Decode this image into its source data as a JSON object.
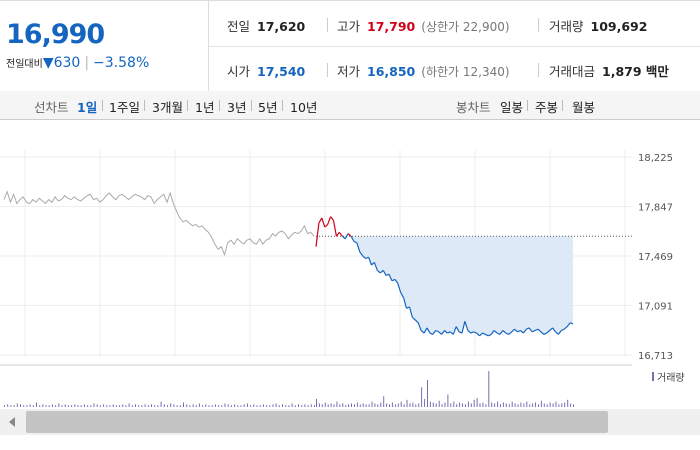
{
  "price": {
    "current": "16,990",
    "change_label": "전일대비",
    "change_icon": "down-triangle-icon",
    "change": "630",
    "change_pct": "−3.58%"
  },
  "stats": {
    "prev_close": {
      "label": "전일",
      "value": "17,620"
    },
    "high": {
      "label": "고가",
      "value": "17,790",
      "sub": "(상한가 22,900)"
    },
    "volume": {
      "label": "거래량",
      "value": "109,692"
    },
    "open": {
      "label": "시가",
      "value": "17,540"
    },
    "low": {
      "label": "저가",
      "value": "16,850",
      "sub": "(하한가 12,340)"
    },
    "amount": {
      "label": "거래대금",
      "value": "1,879 백만"
    }
  },
  "tabs": {
    "line_header": "선차트",
    "line_items": [
      "1일",
      "1주일",
      "3개월",
      "1년",
      "3년",
      "5년",
      "10년"
    ],
    "active": "1일",
    "candle_header": "봉차트",
    "candle_items": [
      "일봉",
      "주봉",
      "월봉"
    ]
  },
  "colors": {
    "up": "#d0021b",
    "down": "#1565c0",
    "prev_day_line": "#aaaaaa",
    "fill": "#dde9f7",
    "volume_bar": "#7e6bb5"
  },
  "chart_data": {
    "type": "line",
    "y_ticks": [
      "18,225",
      "17,847",
      "17,469",
      "17,091",
      "16,713"
    ],
    "ylim": [
      16713,
      18225
    ],
    "reference_price": 17620,
    "prev_day_series": [
      17900,
      17960,
      17880,
      17940,
      17870,
      17900,
      17920,
      17880,
      17870,
      17900,
      17880,
      17910,
      17890,
      17870,
      17900,
      17880,
      17920,
      17890,
      17900,
      17930,
      17910,
      17900,
      17920,
      17900,
      17890,
      17910,
      17930,
      17940,
      17900,
      17910,
      17880,
      17900,
      17930,
      17950,
      17920,
      17900,
      17930,
      17940,
      17920,
      17900,
      17920,
      17940,
      17930,
      17920,
      17900,
      17930,
      17920,
      17870,
      17900,
      17920,
      17940,
      17880,
      17950,
      17870,
      17810,
      17760,
      17730,
      17740,
      17720,
      17700,
      17710,
      17690,
      17700,
      17670,
      17650,
      17610,
      17560,
      17520,
      17540,
      17480,
      17570,
      17590,
      17560,
      17600,
      17580,
      17560,
      17590,
      17600,
      17570,
      17560,
      17600,
      17560,
      17590,
      17600,
      17640,
      17620,
      17650,
      17660,
      17640,
      17600,
      17630,
      17650,
      17640,
      17660,
      17700,
      17640,
      17650,
      17620
    ],
    "today_series": [
      17540,
      17720,
      17760,
      17690,
      17710,
      17770,
      17740,
      17620,
      17650,
      17620,
      17600,
      17640,
      17620,
      17580,
      17570,
      17500,
      17470,
      17450,
      17460,
      17400,
      17420,
      17360,
      17340,
      17360,
      17320,
      17330,
      17280,
      17290,
      17260,
      17190,
      17150,
      17070,
      17080,
      17000,
      16980,
      16960,
      16900,
      16880,
      16920,
      16880,
      16870,
      16900,
      16890,
      16870,
      16900,
      16880,
      16890,
      16870,
      16930,
      16890,
      16880,
      16970,
      16900,
      16880,
      16890,
      16880,
      16860,
      16880,
      16870,
      16860,
      16870,
      16900,
      16880,
      16870,
      16900,
      16880,
      16870,
      16890,
      16910,
      16890,
      16900,
      16880,
      16910,
      16920,
      16890,
      16900,
      16910,
      16890,
      16870,
      16880,
      16900,
      16920,
      16890,
      16870,
      16900,
      16910,
      16930,
      16960,
      16950
    ],
    "volume_legend": "거래량",
    "prev_day_volume": [
      2,
      3,
      2,
      2,
      4,
      3,
      2,
      2,
      3,
      2,
      5,
      2,
      3,
      2,
      2,
      3,
      2,
      4,
      2,
      3,
      2,
      2,
      3,
      2,
      2,
      3,
      2,
      2,
      4,
      3,
      2,
      3,
      2,
      2,
      3,
      2,
      2,
      3,
      2,
      4,
      2,
      3,
      2,
      2,
      3,
      2,
      3,
      2,
      2,
      6,
      3,
      2,
      4,
      3,
      2,
      2,
      5,
      3,
      2,
      3,
      2,
      4,
      2,
      3,
      2,
      2,
      3,
      2,
      2,
      4,
      3,
      2,
      3,
      2,
      2,
      3,
      4,
      2,
      3,
      2,
      2,
      3,
      2,
      2,
      3,
      4,
      2,
      3,
      2,
      2,
      4,
      2,
      3,
      2,
      3,
      2,
      3,
      2
    ],
    "today_volume": [
      9,
      4,
      3,
      5,
      3,
      4,
      3,
      6,
      3,
      4,
      2,
      3,
      4,
      3,
      5,
      3,
      4,
      3,
      3,
      6,
      4,
      3,
      5,
      12,
      4,
      3,
      5,
      3,
      4,
      6,
      3,
      8,
      4,
      5,
      3,
      4,
      22,
      9,
      30,
      6,
      5,
      4,
      7,
      3,
      5,
      14,
      4,
      6,
      3,
      5,
      4,
      3,
      6,
      4,
      8,
      10,
      4,
      5,
      3,
      40,
      5,
      4,
      6,
      3,
      5,
      4,
      3,
      6,
      4,
      3,
      5,
      4,
      6,
      3,
      4,
      5,
      3,
      7,
      4,
      3,
      5,
      4,
      6,
      3,
      4,
      5,
      8,
      4,
      3
    ]
  }
}
